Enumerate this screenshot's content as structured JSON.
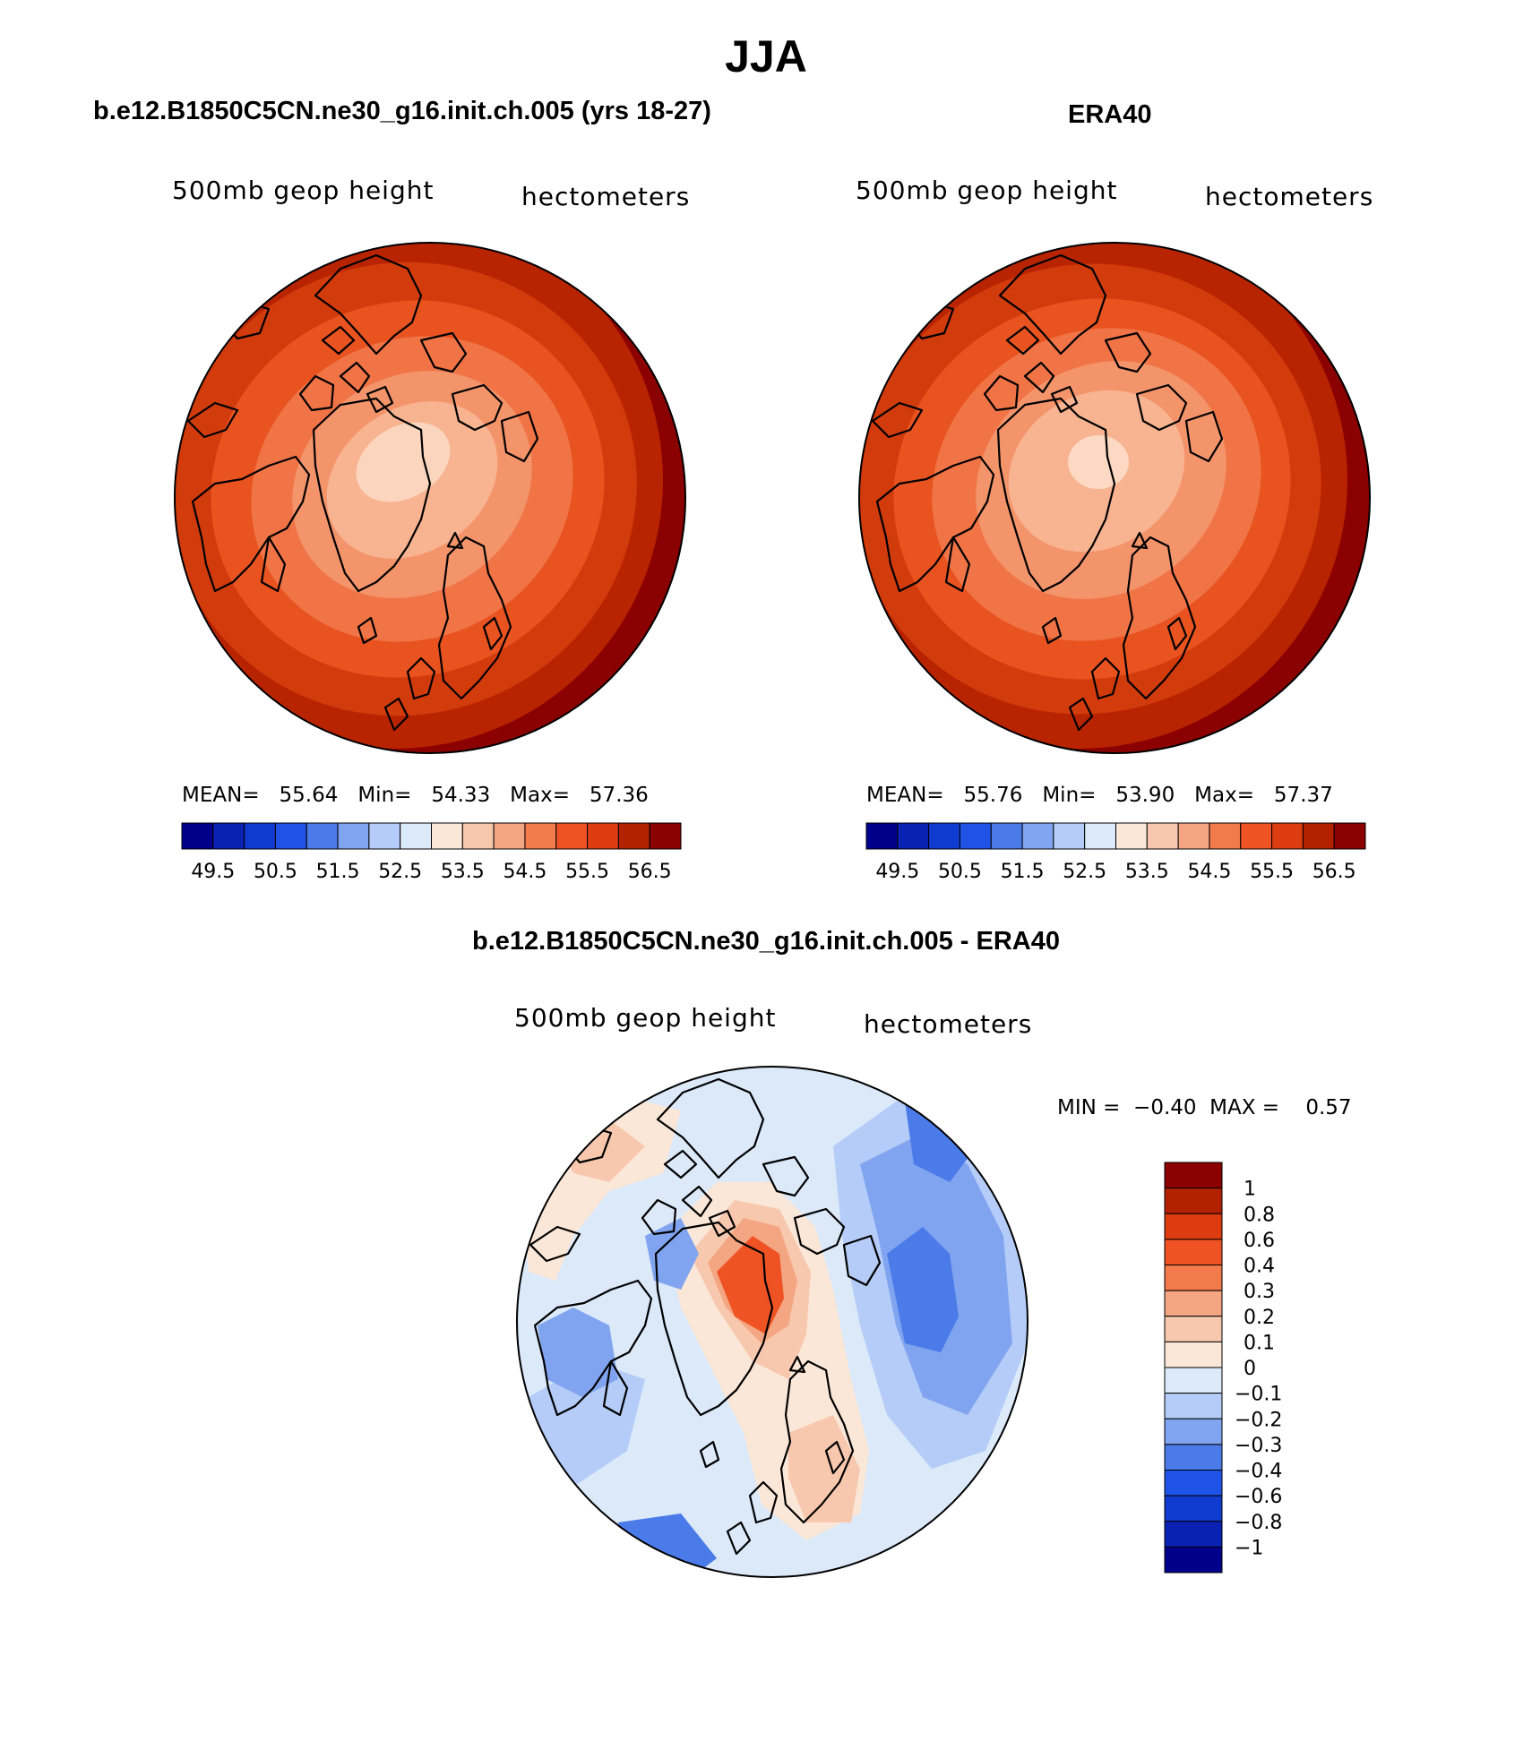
{
  "figure": {
    "title": "JJA"
  },
  "panels": [
    {
      "id": "model",
      "title": "b.e12.B1850C5CN.ne30_g16.init.ch.005 (yrs 18-27)",
      "left_label": "500mb geop height",
      "right_label": "hectometers",
      "stats": {
        "mean_label": "MEAN=",
        "mean": "55.64",
        "min_label": "Min=",
        "min": "54.33",
        "max_label": "Max=",
        "max": "57.36"
      }
    },
    {
      "id": "obs",
      "title": "ERA40",
      "left_label": "500mb geop height",
      "right_label": "hectometers",
      "stats": {
        "mean_label": "MEAN=",
        "mean": "55.76",
        "min_label": "Min=",
        "min": "53.90",
        "max_label": "Max=",
        "max": "57.37"
      }
    },
    {
      "id": "diff",
      "title": "b.e12.B1850C5CN.ne30_g16.init.ch.005 - ERA40",
      "left_label": "500mb geop height",
      "right_label": "hectometers",
      "stats": {
        "min_label": "MIN =",
        "min": "−0.40",
        "max_label": "MAX =",
        "max": "0.57"
      }
    }
  ],
  "chart_data": [
    {
      "type": "heatmap",
      "projection": "north polar stereographic",
      "field": "500mb geop height",
      "units": "hectometers",
      "colorbar": {
        "orientation": "horizontal",
        "colors": [
          "#00008b",
          "#0a22b4",
          "#0f3bd0",
          "#1f52e6",
          "#4a7be8",
          "#80a4ef",
          "#b4ccf7",
          "#dbe9f9",
          "#fbe7d8",
          "#f8c8ae",
          "#f4a582",
          "#f27a4b",
          "#ef5323",
          "#dc3c10",
          "#b32200",
          "#8b0000"
        ],
        "ticks": [
          "49.5",
          "50.5",
          "51.5",
          "52.5",
          "53.5",
          "54.5",
          "55.5",
          "56.5"
        ]
      },
      "contour_levels": [
        54.0,
        54.5,
        55.0,
        55.5,
        56.0,
        56.5,
        57.0
      ],
      "level_colors": [
        "#fbd5bd",
        "#f8b390",
        "#f4946b",
        "#f07446",
        "#e8531f",
        "#d23b0c",
        "#b82400",
        "#8b0000"
      ]
    },
    {
      "type": "heatmap",
      "projection": "north polar stereographic",
      "field": "500mb geop height",
      "units": "hectometers",
      "colorbar": {
        "orientation": "horizontal",
        "colors": [
          "#00008b",
          "#0a22b4",
          "#0f3bd0",
          "#1f52e6",
          "#4a7be8",
          "#80a4ef",
          "#b4ccf7",
          "#dbe9f9",
          "#fbe7d8",
          "#f8c8ae",
          "#f4a582",
          "#f27a4b",
          "#ef5323",
          "#dc3c10",
          "#b32200",
          "#8b0000"
        ],
        "ticks": [
          "49.5",
          "50.5",
          "51.5",
          "52.5",
          "53.5",
          "54.5",
          "55.5",
          "56.5"
        ]
      },
      "contour_levels": [
        54.0,
        54.5,
        55.0,
        55.5,
        56.0,
        56.5,
        57.0
      ],
      "level_colors": [
        "#fdd8c2",
        "#f8b390",
        "#f4946b",
        "#f07446",
        "#e8531f",
        "#d23b0c",
        "#b82400",
        "#8b0000"
      ]
    },
    {
      "type": "heatmap",
      "projection": "north polar stereographic",
      "field": "500mb geop height difference",
      "units": "hectometers",
      "colorbar": {
        "orientation": "vertical",
        "colors": [
          "#8b0000",
          "#b32200",
          "#dc3c10",
          "#ef5323",
          "#f27a4b",
          "#f4a582",
          "#f8c8ae",
          "#fbe7d8",
          "#dbe9f9",
          "#b4ccf7",
          "#80a4ef",
          "#4a7be8",
          "#1f52e6",
          "#0f3bd0",
          "#0a22b4",
          "#00008b"
        ],
        "ticks": [
          "1",
          "0.8",
          "0.6",
          "0.4",
          "0.3",
          "0.2",
          "0.1",
          "0",
          "−0.1",
          "−0.2",
          "−0.3",
          "−0.4",
          "−0.6",
          "−0.8",
          "−1"
        ]
      }
    }
  ]
}
